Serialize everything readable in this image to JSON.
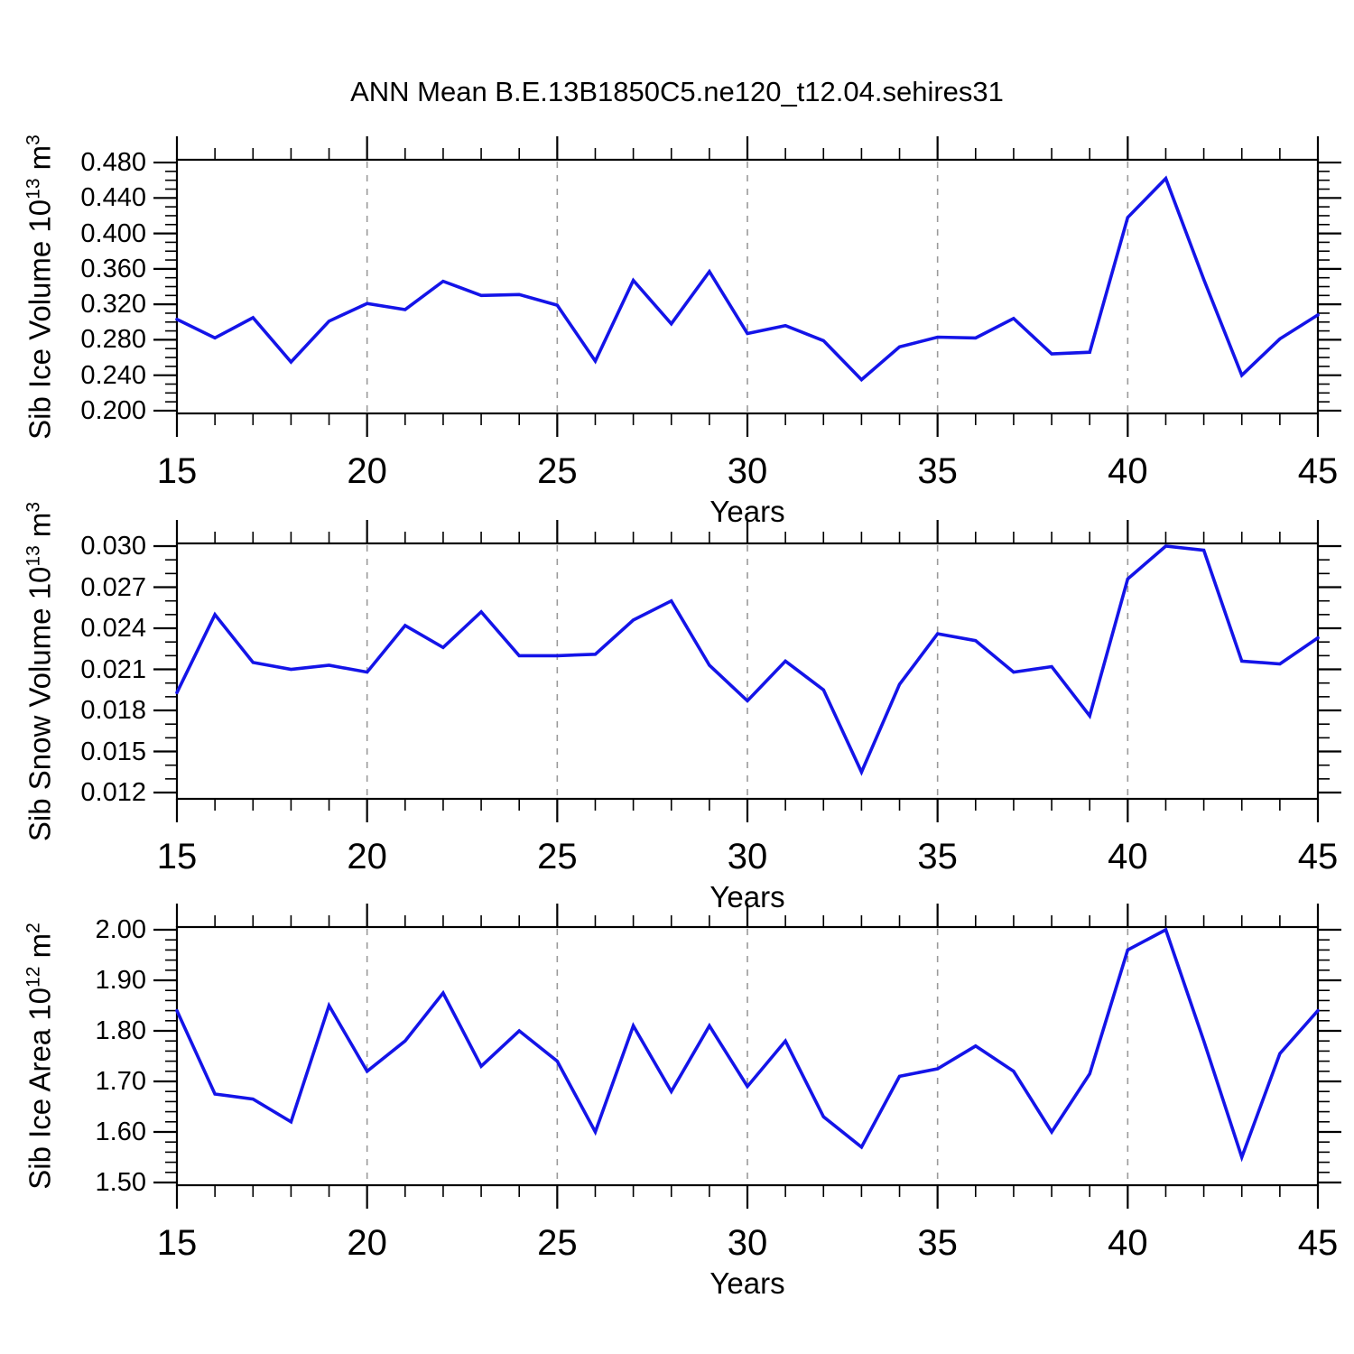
{
  "title": "ANN Mean B.E.13B1850C5.ne120_t12.04.sehires31",
  "colors": {
    "line": "#1414e8",
    "grid": "#9a9a9a",
    "frame": "#000000",
    "text": "#000000",
    "background": "#ffffff"
  },
  "chart_data": [
    {
      "type": "line",
      "name": "sib-ice-volume",
      "ylabel": "Sib Ice Volume 10^13 m^3",
      "ylabel_main": "Sib Ice Volume 10",
      "ylabel_exp": "13",
      "ylabel_unit": " m",
      "ylabel_unit_exp": "3",
      "xlabel": "Years",
      "x": [
        15,
        16,
        17,
        18,
        19,
        20,
        21,
        22,
        23,
        24,
        25,
        26,
        27,
        28,
        29,
        30,
        31,
        32,
        33,
        34,
        35,
        36,
        37,
        38,
        39,
        40,
        41,
        42,
        43,
        44,
        45
      ],
      "values": [
        0.303,
        0.282,
        0.305,
        0.255,
        0.301,
        0.321,
        0.314,
        0.346,
        0.33,
        0.331,
        0.319,
        0.256,
        0.347,
        0.298,
        0.357,
        0.287,
        0.296,
        0.279,
        0.235,
        0.272,
        0.283,
        0.282,
        0.304,
        0.264,
        0.266,
        0.418,
        0.462,
        0.348,
        0.24,
        0.281,
        0.308
      ],
      "xlim": [
        15,
        45
      ],
      "ylim": [
        0.1969,
        0.4831
      ],
      "xticks": [
        15,
        20,
        25,
        30,
        35,
        40,
        45
      ],
      "xtick_labels": [
        "15",
        "20",
        "25",
        "30",
        "35",
        "40",
        "45"
      ],
      "xminor_step": 1,
      "yticks": [
        0.2,
        0.24,
        0.28,
        0.32,
        0.36,
        0.4,
        0.44,
        0.48
      ],
      "ytick_labels": [
        "0.200",
        "0.240",
        "0.280",
        "0.320",
        "0.360",
        "0.400",
        "0.440",
        "0.480"
      ],
      "yminor_step": 0.01,
      "grid_x": [
        20,
        25,
        30,
        35,
        40
      ],
      "grid": "vertical-dashed",
      "legend": "none"
    },
    {
      "type": "line",
      "name": "sib-snow-volume",
      "ylabel": "Sib Snow Volume 10^13 m^3",
      "ylabel_main": "Sib Snow Volume 10",
      "ylabel_exp": "13",
      "ylabel_unit": " m",
      "ylabel_unit_exp": "3",
      "xlabel": "Years",
      "x": [
        15,
        16,
        17,
        18,
        19,
        20,
        21,
        22,
        23,
        24,
        25,
        26,
        27,
        28,
        29,
        30,
        31,
        32,
        33,
        34,
        35,
        36,
        37,
        38,
        39,
        40,
        41,
        42,
        43,
        44,
        45
      ],
      "values": [
        0.0193,
        0.025,
        0.0215,
        0.021,
        0.0213,
        0.0208,
        0.0242,
        0.0226,
        0.0252,
        0.022,
        0.022,
        0.0221,
        0.0246,
        0.026,
        0.0213,
        0.0187,
        0.0216,
        0.0195,
        0.0135,
        0.0199,
        0.0236,
        0.0231,
        0.0208,
        0.0212,
        0.0176,
        0.0276,
        0.03,
        0.0297,
        0.0216,
        0.0214,
        0.0233
      ],
      "xlim": [
        15,
        45
      ],
      "ylim": [
        0.01154,
        0.0302
      ],
      "xticks": [
        15,
        20,
        25,
        30,
        35,
        40,
        45
      ],
      "xtick_labels": [
        "15",
        "20",
        "25",
        "30",
        "35",
        "40",
        "45"
      ],
      "xminor_step": 1,
      "yticks": [
        0.012,
        0.015,
        0.018,
        0.021,
        0.024,
        0.027,
        0.03
      ],
      "ytick_labels": [
        "0.012",
        "0.015",
        "0.018",
        "0.021",
        "0.024",
        "0.027",
        "0.030"
      ],
      "yminor_step": 0.001,
      "grid_x": [
        20,
        25,
        30,
        35,
        40
      ],
      "grid": "vertical-dashed",
      "legend": "none"
    },
    {
      "type": "line",
      "name": "sib-ice-area",
      "ylabel": "Sib Ice Area 10^12 m^2",
      "ylabel_main": "Sib Ice Area 10",
      "ylabel_exp": "12",
      "ylabel_unit": " m",
      "ylabel_unit_exp": "2",
      "xlabel": "Years",
      "x": [
        15,
        16,
        17,
        18,
        19,
        20,
        21,
        22,
        23,
        24,
        25,
        26,
        27,
        28,
        29,
        30,
        31,
        32,
        33,
        34,
        35,
        36,
        37,
        38,
        39,
        40,
        41,
        42,
        43,
        44,
        45
      ],
      "values": [
        1.84,
        1.675,
        1.665,
        1.62,
        1.85,
        1.72,
        1.78,
        1.875,
        1.73,
        1.8,
        1.74,
        1.6,
        1.81,
        1.68,
        1.81,
        1.69,
        1.78,
        1.63,
        1.57,
        1.71,
        1.725,
        1.77,
        1.72,
        1.6,
        1.715,
        1.96,
        2.0,
        1.78,
        1.55,
        1.755,
        1.84
      ],
      "xlim": [
        15,
        45
      ],
      "ylim": [
        1.4946,
        2.0054
      ],
      "xticks": [
        15,
        20,
        25,
        30,
        35,
        40,
        45
      ],
      "xtick_labels": [
        "15",
        "20",
        "25",
        "30",
        "35",
        "40",
        "45"
      ],
      "xminor_step": 1,
      "yticks": [
        1.5,
        1.6,
        1.7,
        1.8,
        1.9,
        2.0
      ],
      "ytick_labels": [
        "1.50",
        "1.60",
        "1.70",
        "1.80",
        "1.90",
        "2.00"
      ],
      "yminor_step": 0.02,
      "grid_x": [
        20,
        25,
        30,
        35,
        40
      ],
      "grid": "vertical-dashed",
      "legend": "none"
    }
  ]
}
